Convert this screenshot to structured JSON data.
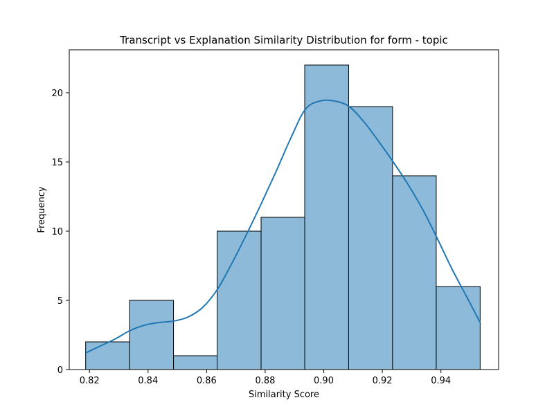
{
  "chart_data": {
    "type": "bar",
    "title": "Transcript vs Explanation Similarity Distribution for form - topic",
    "xlabel": "Similarity Score",
    "ylabel": "Frequency",
    "xlim": [
      0.8131,
      0.9597
    ],
    "ylim": [
      0,
      23.1
    ],
    "xticks": [
      {
        "value": 0.82,
        "label": "0.82"
      },
      {
        "value": 0.84,
        "label": "0.84"
      },
      {
        "value": 0.86,
        "label": "0.86"
      },
      {
        "value": 0.88,
        "label": "0.88"
      },
      {
        "value": 0.9,
        "label": "0.90"
      },
      {
        "value": 0.92,
        "label": "0.92"
      },
      {
        "value": 0.94,
        "label": "0.94"
      }
    ],
    "yticks": [
      {
        "value": 0,
        "label": "0"
      },
      {
        "value": 5,
        "label": "5"
      },
      {
        "value": 10,
        "label": "10"
      },
      {
        "value": 15,
        "label": "15"
      },
      {
        "value": 20,
        "label": "20"
      }
    ],
    "bins": [
      {
        "start": 0.8187,
        "end": 0.8337,
        "count": 2
      },
      {
        "start": 0.8337,
        "end": 0.8487,
        "count": 5
      },
      {
        "start": 0.8487,
        "end": 0.8636,
        "count": 1
      },
      {
        "start": 0.8636,
        "end": 0.8786,
        "count": 10
      },
      {
        "start": 0.8786,
        "end": 0.8935,
        "count": 11
      },
      {
        "start": 0.8935,
        "end": 0.9085,
        "count": 22
      },
      {
        "start": 0.9085,
        "end": 0.9235,
        "count": 19
      },
      {
        "start": 0.9235,
        "end": 0.9384,
        "count": 14
      },
      {
        "start": 0.9384,
        "end": 0.9534,
        "count": 6
      }
    ],
    "kde": {
      "x": [
        0.8187,
        0.8237,
        0.8287,
        0.8337,
        0.8387,
        0.8437,
        0.8487,
        0.8537,
        0.8587,
        0.8637,
        0.8687,
        0.8737,
        0.8787,
        0.8837,
        0.8887,
        0.8937,
        0.8987,
        0.9037,
        0.9087,
        0.9137,
        0.9187,
        0.9237,
        0.9287,
        0.9337,
        0.9387,
        0.9437,
        0.9487,
        0.9534
      ],
      "y": [
        1.2,
        1.7,
        2.2,
        2.8,
        3.2,
        3.4,
        3.5,
        3.8,
        4.5,
        5.8,
        7.7,
        9.8,
        12.0,
        14.3,
        16.7,
        18.8,
        19.4,
        19.4,
        19.0,
        17.9,
        16.5,
        15.0,
        13.4,
        11.6,
        9.5,
        7.3,
        5.3,
        3.4
      ]
    },
    "grid": false,
    "legend": "none",
    "colors": {
      "bar_fill": "#8dbad9",
      "bar_edge": "#000000",
      "kde_line": "#1f77b4",
      "axis": "#000000"
    }
  }
}
